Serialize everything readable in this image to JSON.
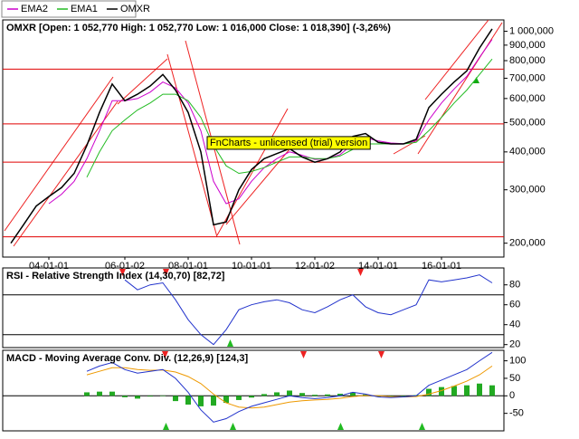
{
  "chart_data": [
    {
      "type": "line",
      "log_scale": true,
      "title": "OMXR [Open: 1 052,770  High: 1 052,770  Low: 1 016,000  Close: 1 018,390] (-3,26%)",
      "watermark": "FnCharts - unlicensed (trial) version",
      "legend": "top-left",
      "categories": [
        null,
        null,
        null,
        "04-01-01",
        null,
        null,
        null,
        null,
        null,
        "06-01-02",
        null,
        null,
        null,
        null,
        "08-01-01",
        null,
        null,
        null,
        null,
        "10-01-01",
        null,
        null,
        null,
        null,
        "12-01-02",
        null,
        null,
        null,
        null,
        "14-01-01",
        null,
        null,
        null,
        null,
        "16-01-01",
        null,
        null,
        null,
        null
      ],
      "ylim": [
        180000,
        1090000
      ],
      "yticks": [
        {
          "value": 200000,
          "label": "200,000"
        },
        {
          "value": 300000,
          "label": "300,000"
        },
        {
          "value": 400000,
          "label": "400,000"
        },
        {
          "value": 500000,
          "label": "500,000"
        },
        {
          "value": 600000,
          "label": "600,000"
        },
        {
          "value": 700000,
          "label": "700,000"
        },
        {
          "value": 800000,
          "label": "800,000"
        },
        {
          "value": 900000,
          "label": "900,000"
        },
        {
          "value": 1000000,
          "label": "1 000,000"
        }
      ],
      "hlines": [
        {
          "value": 750000,
          "color": "#e00000"
        },
        {
          "value": 495000,
          "color": "#e00000"
        },
        {
          "value": 370000,
          "color": "#e00000"
        },
        {
          "value": 210000,
          "color": "#e00000"
        }
      ],
      "series": [
        {
          "name": "EMA2",
          "color": "#cc00cc",
          "values": [
            null,
            null,
            null,
            270000,
            290000,
            320000,
            380000,
            470000,
            590000,
            590000,
            600000,
            630000,
            680000,
            650000,
            580000,
            470000,
            320000,
            270000,
            280000,
            320000,
            355000,
            380000,
            400000,
            390000,
            378000,
            380000,
            392000,
            425000,
            445000,
            435000,
            428000,
            426000,
            435000,
            510000,
            580000,
            645000,
            710000,
            820000,
            940000
          ]
        },
        {
          "name": "EMA1",
          "color": "#22bb22",
          "values": [
            null,
            null,
            null,
            null,
            null,
            null,
            330000,
            400000,
            470000,
            510000,
            550000,
            580000,
            620000,
            620000,
            590000,
            520000,
            420000,
            360000,
            340000,
            345000,
            355000,
            370000,
            385000,
            385000,
            380000,
            380000,
            388000,
            408000,
            425000,
            425000,
            425000,
            425000,
            430000,
            470000,
            520000,
            580000,
            640000,
            720000,
            810000
          ]
        },
        {
          "name": "OMXR",
          "color": "#000000",
          "values": [
            200000,
            230000,
            265000,
            285000,
            305000,
            340000,
            420000,
            540000,
            670000,
            590000,
            620000,
            660000,
            720000,
            640000,
            540000,
            400000,
            230000,
            235000,
            300000,
            350000,
            380000,
            395000,
            410000,
            385000,
            370000,
            380000,
            400000,
            450000,
            460000,
            430000,
            425000,
            425000,
            440000,
            560000,
            620000,
            680000,
            740000,
            880000,
            1018000
          ]
        }
      ]
    },
    {
      "type": "line",
      "title": "RSI - Relative Strength Index (14,30,70) [82,72]",
      "ylim": [
        17,
        97
      ],
      "yticks": [
        20,
        40,
        60,
        80
      ],
      "hlines": [
        {
          "value": 70,
          "color": "#000000"
        },
        {
          "value": 30,
          "color": "#000000"
        }
      ],
      "series": [
        {
          "color": "#2233cc",
          "values": [
            null,
            null,
            null,
            null,
            null,
            null,
            null,
            null,
            null,
            85,
            75,
            80,
            82,
            65,
            45,
            30,
            20,
            35,
            55,
            60,
            63,
            65,
            62,
            55,
            52,
            58,
            65,
            70,
            58,
            52,
            50,
            55,
            60,
            85,
            83,
            85,
            87,
            90,
            82
          ]
        }
      ]
    },
    {
      "type": "line",
      "title": "MACD - Moving Average Conv. Div. (12,26,9) [124,3]",
      "ylim": [
        -100,
        130
      ],
      "yticks": [
        -50,
        0,
        50,
        100
      ],
      "hlines": [
        {
          "value": 0,
          "color": "#000000"
        }
      ],
      "series": [
        {
          "type": "bar",
          "color": "#22aa22",
          "values": [
            null,
            null,
            null,
            null,
            null,
            null,
            10,
            12,
            12,
            -4,
            -8,
            -2,
            1,
            -15,
            -25,
            -30,
            -28,
            -20,
            -12,
            -5,
            5,
            10,
            15,
            8,
            3,
            4,
            6,
            10,
            4,
            -3,
            -3,
            -1,
            2,
            20,
            25,
            28,
            30,
            35,
            30
          ]
        },
        {
          "color": "#ee9900",
          "values": [
            null,
            null,
            null,
            null,
            null,
            null,
            60,
            70,
            80,
            80,
            75,
            73,
            74,
            68,
            55,
            35,
            5,
            -20,
            -32,
            -35,
            -32,
            -25,
            -18,
            -14,
            -12,
            -10,
            -7,
            -2,
            1,
            0,
            -2,
            -3,
            -2,
            5,
            15,
            28,
            42,
            60,
            85
          ]
        },
        {
          "color": "#2233cc",
          "values": [
            null,
            null,
            null,
            null,
            null,
            null,
            70,
            85,
            95,
            75,
            65,
            70,
            75,
            50,
            10,
            -40,
            -75,
            -65,
            -45,
            -30,
            -20,
            -10,
            0,
            -5,
            -8,
            -5,
            0,
            10,
            5,
            -3,
            -5,
            -3,
            0,
            30,
            45,
            60,
            75,
            100,
            124
          ]
        }
      ]
    }
  ]
}
